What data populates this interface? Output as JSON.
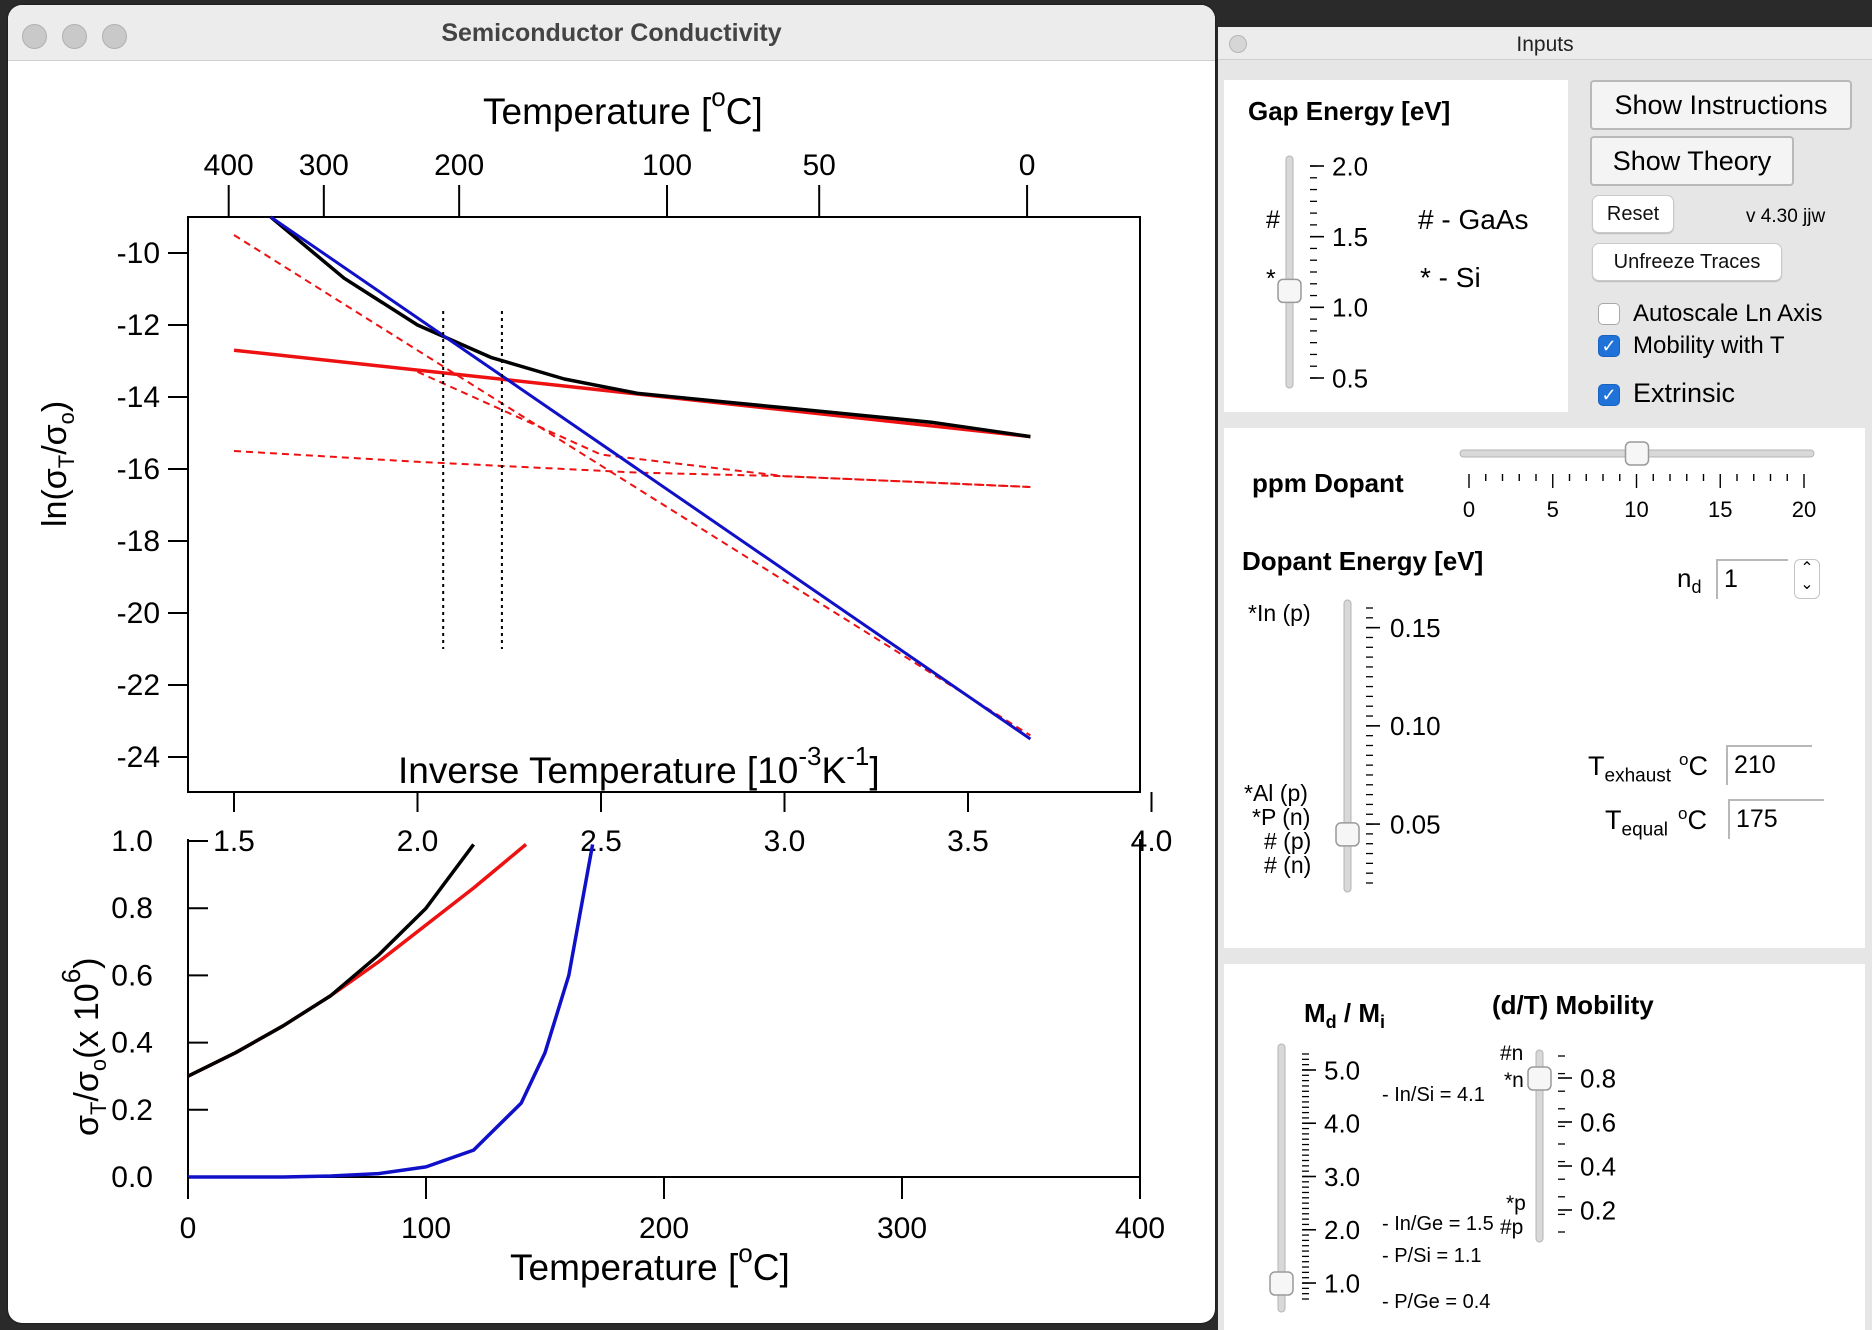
{
  "main_window": {
    "title": "Semiconductor Conductivity"
  },
  "inputs_window": {
    "title": "Inputs"
  },
  "plot": {
    "top_axis_title": "Temperature [",
    "top_axis_unit": "C]",
    "degree": "o",
    "top_ticks": [
      "400",
      "300",
      "200",
      "100",
      "50",
      "0"
    ],
    "upper_ylabel_pre": "ln(σ",
    "upper_ylabel_sub": "T",
    "upper_ylabel_mid": "/σ",
    "upper_ylabel_sub2": "o",
    "upper_ylabel_post": ")",
    "upper_yticks": [
      "-10",
      "-12",
      "-14",
      "-16",
      "-18",
      "-20",
      "-22",
      "-24"
    ],
    "middle_axis_title": "Inverse Temperature [10",
    "middle_axis_sup1": "-3",
    "middle_axis_k": "K",
    "middle_axis_sup2": "-1",
    "middle_axis_close": "]",
    "middle_ticks": [
      "1.5",
      "2.0",
      "2.5",
      "3.0",
      "3.5",
      "4.0"
    ],
    "lower_ylabel_pre": "σ",
    "lower_ylabel_sub": "T",
    "lower_ylabel_mid": "/σ",
    "lower_ylabel_sub2": "o",
    "lower_ylabel_post": "(x 10",
    "lower_ylabel_sup": "6",
    "lower_ylabel_close": ")",
    "lower_yticks": [
      "1.0",
      "0.8",
      "0.6",
      "0.4",
      "0.2",
      "0.0"
    ],
    "bottom_ticks": [
      "0",
      "100",
      "200",
      "300",
      "400"
    ],
    "bottom_axis_title": "Temperature [",
    "bottom_axis_unit": "C]"
  },
  "chart_data": [
    {
      "type": "line",
      "x_unit": "1000/K",
      "xlim": [
        1.4,
        4.0
      ],
      "ylim": [
        -25,
        -9
      ],
      "colors": {
        "total": "#000000",
        "intrinsic": "#1010c8",
        "extrinsic": "#ee1111"
      },
      "series": [
        {
          "x": [
            1.6,
            1.8,
            2.0,
            2.2,
            2.4,
            2.6,
            2.8,
            3.0,
            3.2,
            3.4,
            3.67
          ],
          "y": [
            -9.0,
            -10.7,
            -12.0,
            -12.9,
            -13.5,
            -13.9,
            -14.1,
            -14.3,
            -14.5,
            -14.7,
            -15.1
          ]
        },
        {
          "x": [
            1.6,
            3.67
          ],
          "y": [
            -9.0,
            -23.5
          ]
        },
        {
          "x": [
            1.5,
            3.67
          ],
          "y": [
            -12.7,
            -15.1
          ]
        },
        {
          "x": [
            1.5,
            3.67
          ],
          "y": [
            -9.5,
            -23.4
          ]
        },
        {
          "x": [
            1.5,
            2.0,
            2.4,
            2.6,
            3.0,
            3.67
          ],
          "y": [
            -15.5,
            -15.8,
            -16.0,
            -16.1,
            -16.2,
            -16.5
          ]
        },
        {
          "x": [
            2.0,
            2.5,
            3.0,
            3.67
          ],
          "y": [
            -13.3,
            -15.6,
            -16.2,
            -16.5
          ]
        }
      ],
      "vlines_x": [
        2.07,
        2.23
      ],
      "vline_ymin": -21
    },
    {
      "type": "line",
      "x_unit": "°C",
      "xlim": [
        0,
        400
      ],
      "ylim": [
        0,
        1.0
      ],
      "series": [
        {
          "x": [
            0,
            20,
            40,
            60,
            80,
            100,
            120
          ],
          "y": [
            0.3,
            0.37,
            0.45,
            0.54,
            0.66,
            0.8,
            0.99
          ]
        },
        {
          "x": [
            0,
            20,
            40,
            60,
            80,
            100,
            120,
            142
          ],
          "y": [
            0.3,
            0.37,
            0.45,
            0.54,
            0.64,
            0.75,
            0.86,
            0.99
          ]
        },
        {
          "x": [
            0,
            40,
            60,
            80,
            100,
            120,
            140,
            150,
            160,
            170
          ],
          "y": [
            0.0,
            0.0,
            0.003,
            0.01,
            0.03,
            0.08,
            0.22,
            0.37,
            0.6,
            0.99
          ]
        }
      ]
    }
  ],
  "gap": {
    "title": "Gap Energy [eV]",
    "ticks": [
      "2.0",
      "1.5",
      "1.0",
      "0.5"
    ],
    "markers": [
      "#",
      "*"
    ],
    "legend_gaas": "# - GaAs",
    "legend_si": "* - Si",
    "value": 1.12,
    "range": [
      0.5,
      2.0
    ]
  },
  "buttons": {
    "show_instructions": "Show Instructions",
    "show_theory": "Show Theory",
    "reset": "Reset",
    "version": "v 4.30 jjw",
    "unfreeze": "Unfreeze Traces"
  },
  "checks": {
    "autoscale": "Autoscale Ln Axis",
    "mobility": "Mobility with T",
    "extrinsic": "Extrinsic",
    "autoscale_checked": false,
    "mobility_checked": true,
    "extrinsic_checked": true,
    "checkmark": "✓"
  },
  "ppm": {
    "title": "ppm Dopant",
    "ticks": [
      "0",
      "5",
      "10",
      "15",
      "20"
    ],
    "value": 10
  },
  "dopant": {
    "title": "Dopant Energy [eV]",
    "ticks": [
      "0.15",
      "0.10",
      "0.05"
    ],
    "labels": [
      "*In (p)",
      "*Al (p)",
      "*P (n)",
      "# (p)",
      "# (n)"
    ],
    "value": 0.045
  },
  "nd": {
    "label": "n",
    "sub": "d",
    "value": "1",
    "up": "⌃",
    "down": "⌄"
  },
  "temps": {
    "exhaust_label": "T",
    "exhaust_sub": "exhaust",
    "unit": "C",
    "deg": "o",
    "exhaust_value": "210",
    "equal_label": "T",
    "equal_sub": "equal",
    "equal_value": "175"
  },
  "md": {
    "title_m": "M",
    "title_sub1": "d",
    "title_slash": " / M",
    "title_sub2": "i",
    "ticks": [
      "5.0",
      "4.0",
      "3.0",
      "2.0",
      "1.0"
    ],
    "notes": [
      "- In/Si = 4.1",
      "- In/Ge = 1.5",
      "- P/Si = 1.1",
      "- P/Ge = 0.4"
    ],
    "value": 1.0
  },
  "mobility": {
    "title": "(d/T) Mobility",
    "ticks": [
      "0.8",
      "0.6",
      "0.4",
      "0.2"
    ],
    "markers_top": [
      "#n",
      "*n"
    ],
    "markers_bottom": [
      "*p",
      "#p"
    ],
    "value": 0.8
  }
}
